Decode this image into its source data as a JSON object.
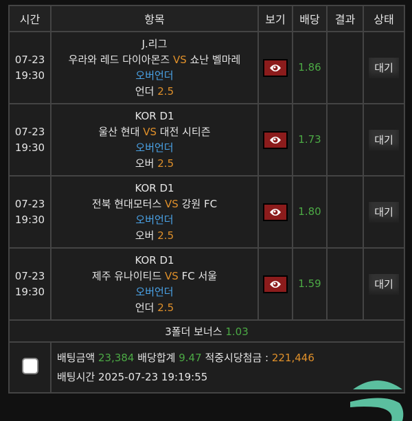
{
  "headers": {
    "time": "시간",
    "item": "항목",
    "view": "보기",
    "odds": "배당",
    "result": "결과",
    "status": "상태"
  },
  "games": [
    {
      "date": "07-23",
      "time": "19:30",
      "league": "J.리그",
      "home": "우라와 레드 다이아몬즈",
      "vs": "VS",
      "away": "쇼난 벨마레",
      "market": "오버언더",
      "pick": "언더",
      "line": "2.5",
      "odds": "1.86",
      "result": "",
      "status": "대기"
    },
    {
      "date": "07-23",
      "time": "19:30",
      "league": "KOR D1",
      "home": "울산 현대",
      "vs": "VS",
      "away": "대전 시티즌",
      "market": "오버언더",
      "pick": "오버",
      "line": "2.5",
      "odds": "1.73",
      "result": "",
      "status": "대기"
    },
    {
      "date": "07-23",
      "time": "19:30",
      "league": "KOR D1",
      "home": "전북 현대모터스",
      "vs": "VS",
      "away": "강원 FC",
      "market": "오버언더",
      "pick": "오버",
      "line": "2.5",
      "odds": "1.80",
      "result": "",
      "status": "대기"
    },
    {
      "date": "07-23",
      "time": "19:30",
      "league": "KOR D1",
      "home": "제주 유나이티드",
      "vs": "VS",
      "away": "FC 서울",
      "market": "오버언더",
      "pick": "언더",
      "line": "2.5",
      "odds": "1.59",
      "result": "",
      "status": "대기"
    }
  ],
  "bonus": {
    "label": "3폴더 보너스",
    "value": "1.03"
  },
  "footer": {
    "amount_label": "배팅금액",
    "amount": "23,384",
    "odds_label": "배당합계",
    "odds": "9.47",
    "payout_label": "적중시당첨금 :",
    "payout": "221,446",
    "time_label": "배팅시간",
    "time": "2025-07-23 19:19:55"
  },
  "colors": {
    "odds": "#4caa45",
    "vs": "#e0902a",
    "market": "#4aa3e8",
    "view_button": "#8c1c1c"
  }
}
